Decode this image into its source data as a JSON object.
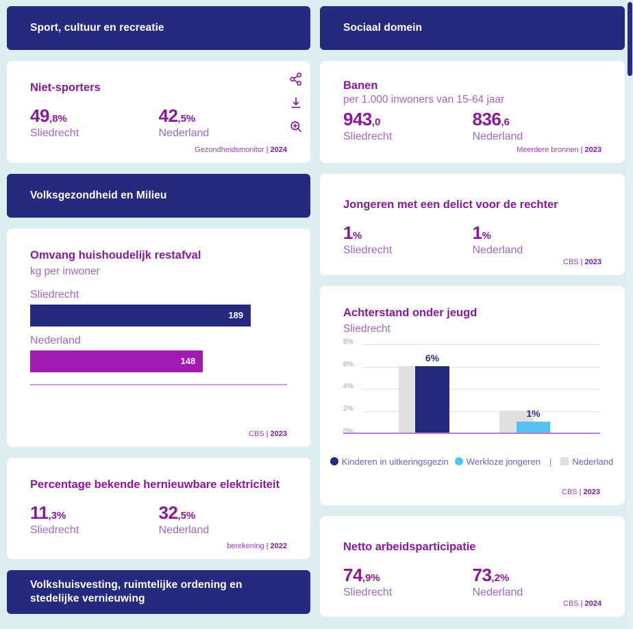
{
  "ui": {
    "sep": "|"
  },
  "colors": {
    "background": "#ddeef0",
    "section_navy": "#252a7f",
    "title_purple": "#8a189d",
    "label_light_purple": "#a165c2",
    "bar_navy": "#252a7f",
    "bar_magenta": "#a31cb2",
    "bar_blue": "#54c2f0",
    "bar_grey": "#e0e0e0",
    "axis_purple": "#b77bd4"
  },
  "icons": [
    "share-icon",
    "download-icon",
    "zoom-in-icon"
  ],
  "sections": {
    "sport": "Sport, cultuur en recreatie",
    "sociaal": "Sociaal domein",
    "volksgezondheid": "Volksgezondheid en Milieu",
    "volkshuisvesting": "Volkshuisvesting, ruimtelijke ordening en stedelijke vernieuwing"
  },
  "cards": {
    "niet_sporters": {
      "title": "Niet-sporters",
      "stats": [
        {
          "big": "49",
          "small": ",8%",
          "label": "Sliedrecht"
        },
        {
          "big": "42",
          "small": ",5%",
          "label": "Nederland"
        }
      ],
      "source": {
        "name": "Gezondheidsmonitor",
        "year": "2024"
      }
    },
    "banen": {
      "title": "Banen",
      "subtitle": "per 1.000 inwoners van 15-64 jaar",
      "stats": [
        {
          "big": "943",
          "small": ",0",
          "label": "Sliedrecht"
        },
        {
          "big": "836",
          "small": ",6",
          "label": "Nederland"
        }
      ],
      "source": {
        "name": "Meerdere bronnen",
        "year": "2023"
      }
    },
    "jongeren_delict": {
      "title": "Jongeren met een delict voor de rechter",
      "stats": [
        {
          "big": "1",
          "small": "%",
          "label": "Sliedrecht"
        },
        {
          "big": "1",
          "small": "%",
          "label": "Nederland"
        }
      ],
      "source": {
        "name": "CBS",
        "year": "2023"
      }
    },
    "hernieuwbare_elektriciteit": {
      "title": "Percentage bekende hernieuwbare elektriciteit",
      "stats": [
        {
          "big": "11",
          "small": ",3%",
          "label": "Sliedrecht"
        },
        {
          "big": "32",
          "small": ",5%",
          "label": "Nederland"
        }
      ],
      "source": {
        "name": "berekening",
        "year": "2022"
      }
    },
    "netto_arbeidsparticipatie": {
      "title": "Netto arbeidsparticipatie",
      "stats": [
        {
          "big": "74",
          "small": ",9%",
          "label": "Sliedrecht"
        },
        {
          "big": "73",
          "small": ",2%",
          "label": "Nederland"
        }
      ],
      "source": {
        "name": "CBS",
        "year": "2024"
      }
    }
  },
  "chart_data": [
    {
      "id": "restafval",
      "type": "bar",
      "orientation": "horizontal",
      "title": "Omvang huishoudelijk restafval",
      "ylabel": "kg per inwoner",
      "categories": [
        "Sliedrecht",
        "Nederland"
      ],
      "values": [
        189,
        148
      ],
      "labels": [
        "189",
        "148"
      ],
      "colors": [
        "#252a7f",
        "#a31cb2"
      ],
      "xlim": [
        0,
        220
      ],
      "source": "CBS",
      "year": "2023"
    },
    {
      "id": "achterstand-jeugd",
      "type": "bar",
      "orientation": "vertical",
      "title": "Achterstand onder jeugd",
      "subtitle": "Sliedrecht",
      "categories": [
        "Kinderen in uitkeringsgezin",
        "Werkloze jongeren"
      ],
      "series": [
        {
          "name": "Sliedrecht",
          "values": [
            6,
            1
          ],
          "colors": [
            "#252a7f",
            "#54c2f0"
          ]
        },
        {
          "name": "Nederland",
          "values": [
            6,
            2
          ],
          "colors": [
            "#e0e0e0",
            "#e0e0e0"
          ]
        }
      ],
      "bar_labels": [
        "6%",
        "1%"
      ],
      "ylim": [
        0,
        8
      ],
      "yticks_desc": [
        "8%",
        "6%",
        "4%",
        "2%",
        "0%"
      ],
      "grid": true,
      "legend_position": "bottom",
      "legend": [
        {
          "label": "Kinderen in uitkeringsgezin",
          "color": "#252a7f",
          "shape": "circle"
        },
        {
          "label": "Werkloze jongeren",
          "color": "#54c2f0",
          "shape": "circle"
        },
        {
          "label": "Nederland",
          "color": "#e0e0e0",
          "shape": "square"
        }
      ],
      "source": "CBS",
      "year": "2023"
    }
  ]
}
